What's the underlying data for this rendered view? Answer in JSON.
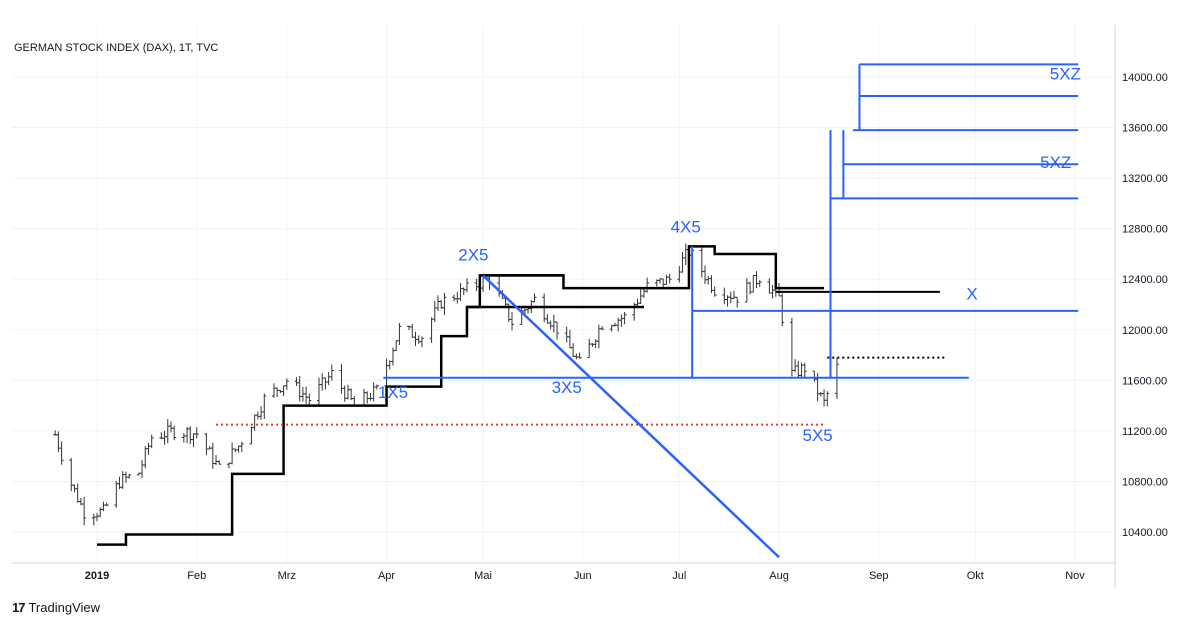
{
  "chart_data": {
    "type": "ohlc",
    "title": "GERMAN STOCK INDEX (DAX), 1T, TVC",
    "x_ticks": [
      "2019",
      "Feb",
      "Mrz",
      "Apr",
      "Mai",
      "Jun",
      "Jul",
      "Aug",
      "Sep",
      "Okt",
      "Nov"
    ],
    "y_ticks": [
      "10400.00",
      "10800.00",
      "11200.00",
      "11600.00",
      "12000.00",
      "12400.00",
      "12800.00",
      "13200.00",
      "13600.00",
      "14000.00"
    ],
    "ylim": [
      10130,
      14230
    ],
    "grid": true,
    "price_series": [
      {
        "date": "2018-12-19",
        "close": 11170
      },
      {
        "date": "2018-12-24",
        "close": 10780
      },
      {
        "date": "2018-12-28",
        "close": 10560
      },
      {
        "date": "2019-01-03",
        "close": 10560
      },
      {
        "date": "2019-01-08",
        "close": 10800
      },
      {
        "date": "2019-01-14",
        "close": 10870
      },
      {
        "date": "2019-01-18",
        "close": 11150
      },
      {
        "date": "2019-01-25",
        "close": 11200
      },
      {
        "date": "2019-02-01",
        "close": 11180
      },
      {
        "date": "2019-02-08",
        "close": 10900
      },
      {
        "date": "2019-02-14",
        "close": 11080
      },
      {
        "date": "2019-02-22",
        "close": 11450
      },
      {
        "date": "2019-03-01",
        "close": 11600
      },
      {
        "date": "2019-03-08",
        "close": 11450
      },
      {
        "date": "2019-03-15",
        "close": 11650
      },
      {
        "date": "2019-03-22",
        "close": 11400
      },
      {
        "date": "2019-03-29",
        "close": 11520
      },
      {
        "date": "2019-04-05",
        "close": 12000
      },
      {
        "date": "2019-04-12",
        "close": 11950
      },
      {
        "date": "2019-04-18",
        "close": 12220
      },
      {
        "date": "2019-04-26",
        "close": 12320
      },
      {
        "date": "2019-05-03",
        "close": 12410
      },
      {
        "date": "2019-05-10",
        "close": 12060
      },
      {
        "date": "2019-05-17",
        "close": 12240
      },
      {
        "date": "2019-05-24",
        "close": 12010
      },
      {
        "date": "2019-05-31",
        "close": 11730
      },
      {
        "date": "2019-06-07",
        "close": 12050
      },
      {
        "date": "2019-06-14",
        "close": 12100
      },
      {
        "date": "2019-06-21",
        "close": 12340
      },
      {
        "date": "2019-06-28",
        "close": 12400
      },
      {
        "date": "2019-07-04",
        "close": 12620
      },
      {
        "date": "2019-07-12",
        "close": 12320
      },
      {
        "date": "2019-07-19",
        "close": 12260
      },
      {
        "date": "2019-07-26",
        "close": 12420
      },
      {
        "date": "2019-08-01",
        "close": 12250
      },
      {
        "date": "2019-08-05",
        "close": 11650
      },
      {
        "date": "2019-08-09",
        "close": 11700
      },
      {
        "date": "2019-08-15",
        "close": 11420
      },
      {
        "date": "2019-08-19",
        "close": 11700
      }
    ],
    "step_line_black": [
      {
        "date": "2019-01-01",
        "value": 10300
      },
      {
        "date": "2019-01-10",
        "value": 10380
      },
      {
        "date": "2019-02-12",
        "value": 10860
      },
      {
        "date": "2019-02-28",
        "value": 11400
      },
      {
        "date": "2019-04-01",
        "value": 11550
      },
      {
        "date": "2019-04-18",
        "value": 11950
      },
      {
        "date": "2019-04-26",
        "value": 12180
      },
      {
        "date": "2019-04-30",
        "value": 12430
      },
      {
        "date": "2019-05-26",
        "value": 12330
      },
      {
        "date": "2019-07-04",
        "value": 12660
      },
      {
        "date": "2019-07-12",
        "value": 12600
      },
      {
        "date": "2019-07-31",
        "value": 12330
      }
    ],
    "annotations": [
      {
        "label": "1X5",
        "date": "2019-04-03",
        "value": 11460
      },
      {
        "label": "2X5",
        "date": "2019-04-28",
        "value": 12550
      },
      {
        "label": "3X5",
        "date": "2019-05-27",
        "value": 11500
      },
      {
        "label": "4X5",
        "date": "2019-07-03",
        "value": 12770
      },
      {
        "label": "5X5",
        "date": "2019-08-13",
        "value": 11120
      },
      {
        "label": "X",
        "date": "2019-09-30",
        "value": 12240
      },
      {
        "label": "5XZ",
        "date": "2019-10-26",
        "value": 13280
      },
      {
        "label": "5XZ",
        "date": "2019-10-29",
        "value": 13980
      }
    ],
    "horizontal_levels": [
      {
        "value": 11620,
        "color": "#2962ff"
      },
      {
        "value": 12150,
        "color": "#2962ff"
      },
      {
        "value": 12300,
        "color": "#000000"
      },
      {
        "value": 11250,
        "color": "#e53935",
        "style": "dotted"
      },
      {
        "value": 11780,
        "color": "#000000",
        "style": "dotted"
      },
      {
        "value": 13040,
        "color": "#2962ff"
      },
      {
        "value": 13310,
        "color": "#2962ff"
      },
      {
        "value": 13580,
        "color": "#2962ff"
      },
      {
        "value": 13850,
        "color": "#2962ff"
      },
      {
        "value": 14100,
        "color": "#2962ff"
      }
    ],
    "trend_line": {
      "from": {
        "date": "2019-05-01",
        "value": 12430
      },
      "to": {
        "date": "2019-08-01",
        "value": 10200
      }
    }
  },
  "branding": {
    "text": "TradingView",
    "logo": "17"
  },
  "colors": {
    "accent": "#2962ff",
    "grid": "#f0f3fa",
    "text": "#131722"
  }
}
